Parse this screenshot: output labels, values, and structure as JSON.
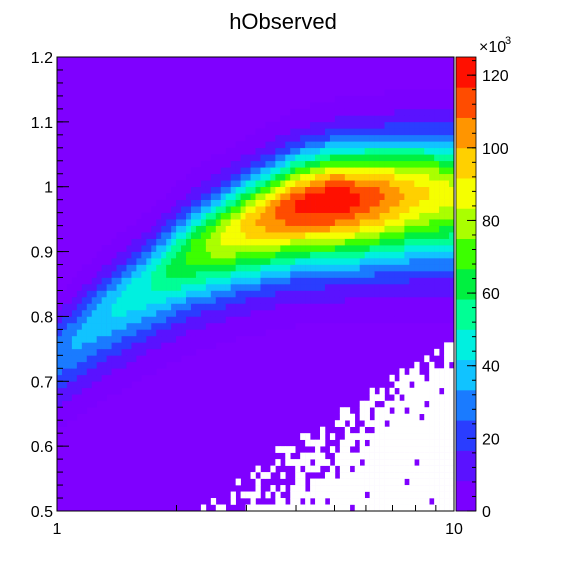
{
  "chart_data": {
    "type": "heatmap",
    "title": "hObserved",
    "xlabel": "",
    "ylabel": "",
    "x_scale": "log",
    "xlim": [
      1,
      10
    ],
    "ylim": [
      0.5,
      1.2
    ],
    "x_ticks": [
      "1",
      "10"
    ],
    "y_ticks": [
      "0.5",
      "0.6",
      "0.7",
      "0.8",
      "0.9",
      "1",
      "1.1",
      "1.2"
    ],
    "z_scale_label": "×10",
    "z_scale_exponent": "3",
    "z_ticks": [
      "0",
      "20",
      "40",
      "60",
      "80",
      "100",
      "120"
    ],
    "zlim": [
      0,
      125000
    ],
    "grid": false,
    "band": {
      "description_values": {
        "peak_x": 5.0,
        "peak_y": 0.98,
        "peak_z": 125000
      },
      "ridge": [
        {
          "x": 1.0,
          "y": 0.74,
          "z": 30000
        },
        {
          "x": 1.3,
          "y": 0.8,
          "z": 40000
        },
        {
          "x": 1.7,
          "y": 0.85,
          "z": 50000
        },
        {
          "x": 2.2,
          "y": 0.9,
          "z": 70000
        },
        {
          "x": 3.0,
          "y": 0.94,
          "z": 95000
        },
        {
          "x": 4.0,
          "y": 0.97,
          "z": 118000
        },
        {
          "x": 5.0,
          "y": 0.98,
          "z": 125000
        },
        {
          "x": 6.5,
          "y": 0.985,
          "z": 110000
        },
        {
          "x": 8.0,
          "y": 0.99,
          "z": 95000
        },
        {
          "x": 10.0,
          "y": 0.99,
          "z": 85000
        }
      ]
    },
    "empty_region": "lower-right (x > 2, y < 0.72)"
  },
  "colors": {
    "palette": [
      "#7a00ff",
      "#5a12ff",
      "#2a3dff",
      "#1a7bff",
      "#11c3ff",
      "#00f0e0",
      "#00ff95",
      "#00f040",
      "#3cff00",
      "#aaff00",
      "#f5ff00",
      "#ffd000",
      "#ff9500",
      "#ff4c00",
      "#ff1000"
    ],
    "background_fill": "#7f00ff",
    "frame": "#000000"
  }
}
